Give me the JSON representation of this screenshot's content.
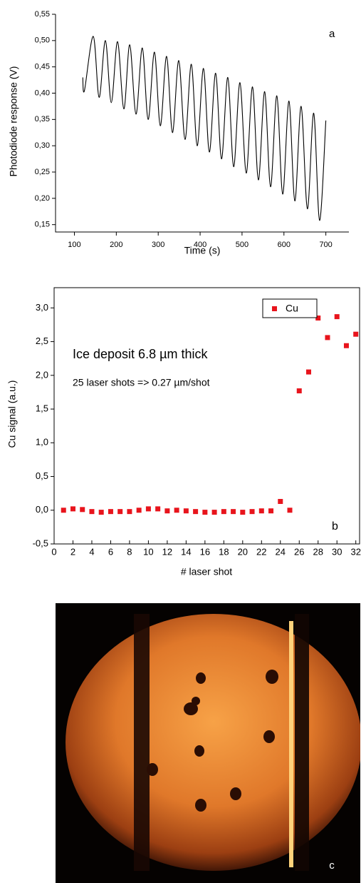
{
  "chart_data": [
    {
      "type": "line",
      "annotation": "a",
      "x_label": "Time (s)",
      "y_label": "Photodiode response (V)",
      "xlim": [
        55,
        755
      ],
      "xticks": [
        100,
        200,
        300,
        400,
        500,
        600,
        700
      ],
      "ylim": [
        0.136,
        0.55
      ],
      "yticks": [
        {
          "value": 0.15,
          "label": "0,15"
        },
        {
          "value": 0.2,
          "label": "0,20"
        },
        {
          "value": 0.25,
          "label": "0,25"
        },
        {
          "value": 0.3,
          "label": "0,30"
        },
        {
          "value": 0.35,
          "label": "0,35"
        },
        {
          "value": 0.4,
          "label": "0,40"
        },
        {
          "value": 0.45,
          "label": "0,45"
        },
        {
          "value": 0.5,
          "label": "0,50"
        },
        {
          "value": 0.55,
          "label": "0,55"
        }
      ],
      "color": "#000000",
      "x": [
        120,
        124,
        145,
        159,
        174,
        188,
        203,
        218,
        232,
        247,
        262,
        276,
        291,
        305,
        320,
        334,
        349,
        364,
        379,
        393,
        408,
        422,
        437,
        451,
        466,
        480,
        495,
        510,
        525,
        539,
        554,
        568,
        583,
        597,
        612,
        626,
        641,
        656,
        671,
        685,
        700
      ],
      "values": [
        0.43,
        0.405,
        0.508,
        0.392,
        0.5,
        0.382,
        0.498,
        0.37,
        0.492,
        0.36,
        0.486,
        0.35,
        0.478,
        0.338,
        0.47,
        0.325,
        0.462,
        0.312,
        0.455,
        0.3,
        0.447,
        0.288,
        0.438,
        0.275,
        0.43,
        0.26,
        0.42,
        0.248,
        0.412,
        0.235,
        0.403,
        0.222,
        0.395,
        0.208,
        0.385,
        0.195,
        0.375,
        0.18,
        0.362,
        0.158,
        0.348
      ]
    },
    {
      "type": "scatter",
      "annotations": [
        "Ice deposit 6.8 µm thick",
        "25 laser shots => 0.27 µm/shot",
        "b"
      ],
      "x_label": "# laser shot",
      "y_label": "Cu signal (a.u.)",
      "xlim": [
        0,
        32.4
      ],
      "xticks": [
        0,
        2,
        4,
        6,
        8,
        10,
        12,
        14,
        16,
        18,
        20,
        22,
        24,
        26,
        28,
        30,
        32
      ],
      "ylim": [
        -0.5,
        3.3
      ],
      "yticks": [
        {
          "value": -0.5,
          "label": "-0,5"
        },
        {
          "value": 0,
          "label": "0,0"
        },
        {
          "value": 0.5,
          "label": "0,5"
        },
        {
          "value": 1,
          "label": "1,0"
        },
        {
          "value": 1.5,
          "label": "1,5"
        },
        {
          "value": 2,
          "label": "2,0"
        },
        {
          "value": 2.5,
          "label": "2,5"
        },
        {
          "value": 3,
          "label": "3,0"
        }
      ],
      "legend": "upper right",
      "series": [
        {
          "name": "Cu",
          "color": "#e8141c",
          "x": [
            1,
            2,
            3,
            4,
            5,
            6,
            7,
            8,
            9,
            10,
            11,
            12,
            13,
            14,
            15,
            16,
            17,
            18,
            19,
            20,
            21,
            22,
            23,
            24,
            25,
            26,
            27,
            28,
            29,
            30,
            31,
            32
          ],
          "values": [
            0.0,
            0.02,
            0.01,
            -0.02,
            -0.03,
            -0.02,
            -0.02,
            -0.02,
            0.0,
            0.02,
            0.02,
            -0.01,
            0.0,
            -0.01,
            -0.02,
            -0.03,
            -0.03,
            -0.02,
            -0.02,
            -0.03,
            -0.02,
            -0.01,
            -0.01,
            0.13,
            0.0,
            1.77,
            2.05,
            2.85,
            2.56,
            2.87,
            2.44,
            2.61
          ]
        }
      ]
    }
  ],
  "image": {
    "label": "c"
  }
}
